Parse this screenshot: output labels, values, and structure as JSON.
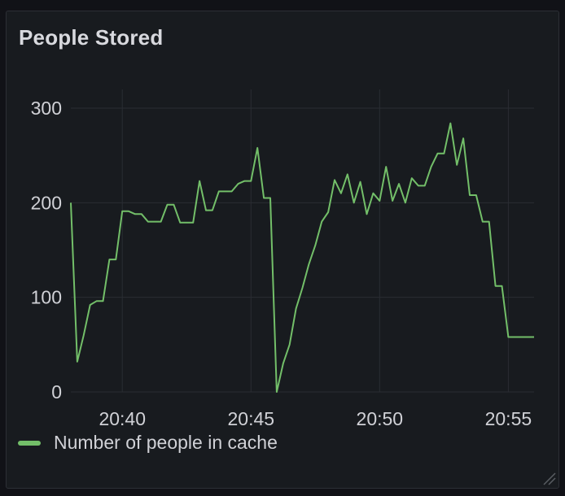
{
  "panel": {
    "title": "People Stored"
  },
  "colors": {
    "series": "#73bf69",
    "grid": "#2a2d33"
  },
  "chart_data": {
    "type": "line",
    "title": "People Stored",
    "xlabel": "",
    "ylabel": "",
    "ylim": [
      0,
      300
    ],
    "xlim": [
      "20:38",
      "20:56"
    ],
    "yticks": [
      "0",
      "100",
      "200",
      "300"
    ],
    "xticks": [
      "20:40",
      "20:45",
      "20:50",
      "20:55"
    ],
    "grid": true,
    "legend_placement": "bottom-left",
    "series": [
      {
        "name": "Number of people in cache",
        "x": [
          "20:38:00",
          "20:38:15",
          "20:38:30",
          "20:38:45",
          "20:39:00",
          "20:39:15",
          "20:39:30",
          "20:39:45",
          "20:40:00",
          "20:40:15",
          "20:40:30",
          "20:40:45",
          "20:41:00",
          "20:41:15",
          "20:41:30",
          "20:41:45",
          "20:42:00",
          "20:42:15",
          "20:42:30",
          "20:42:45",
          "20:43:00",
          "20:43:15",
          "20:43:30",
          "20:43:45",
          "20:44:00",
          "20:44:15",
          "20:44:30",
          "20:44:45",
          "20:45:00",
          "20:45:15",
          "20:45:30",
          "20:45:45",
          "20:46:00",
          "20:46:15",
          "20:46:30",
          "20:46:45",
          "20:47:00",
          "20:47:15",
          "20:47:30",
          "20:47:45",
          "20:48:00",
          "20:48:15",
          "20:48:30",
          "20:48:45",
          "20:49:00",
          "20:49:15",
          "20:49:30",
          "20:49:45",
          "20:50:00",
          "20:50:15",
          "20:50:30",
          "20:50:45",
          "20:51:00",
          "20:51:15",
          "20:51:30",
          "20:51:45",
          "20:52:00",
          "20:52:15",
          "20:52:30",
          "20:52:45",
          "20:53:00",
          "20:53:15",
          "20:53:30",
          "20:53:45",
          "20:54:00",
          "20:54:15",
          "20:54:30",
          "20:54:45",
          "20:55:00",
          "20:55:15",
          "20:55:30",
          "20:55:45",
          "20:56:00"
        ],
        "values": [
          200,
          32,
          60,
          92,
          96,
          96,
          140,
          140,
          191,
          191,
          188,
          188,
          180,
          180,
          180,
          198,
          198,
          179,
          179,
          179,
          223,
          192,
          192,
          212,
          212,
          212,
          220,
          223,
          223,
          258,
          205,
          205,
          0,
          30,
          50,
          88,
          110,
          135,
          155,
          180,
          190,
          224,
          210,
          230,
          200,
          222,
          188,
          210,
          202,
          238,
          202,
          220,
          200,
          226,
          218,
          218,
          238,
          252,
          252,
          284,
          240,
          268,
          208,
          208,
          180,
          180,
          112,
          112,
          58,
          58,
          58,
          58,
          58
        ]
      }
    ]
  }
}
